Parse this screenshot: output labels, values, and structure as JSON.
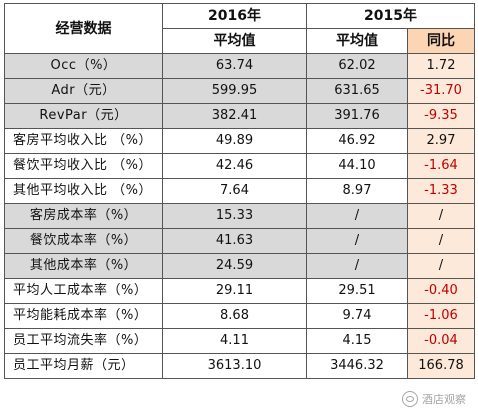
{
  "header": {
    "metric_label": "经营数据",
    "year_2016": "2016年",
    "year_2015": "2015年",
    "avg_label_2016": "平均值",
    "avg_label_2015": "平均值",
    "yoy_label": "同比"
  },
  "rows": [
    {
      "label": "Occ（%）",
      "v2016": "63.74",
      "v2015": "62.02",
      "yoy": "1.72",
      "yoy_negative": false,
      "gray": true,
      "centered": true
    },
    {
      "label": "Adr（元）",
      "v2016": "599.95",
      "v2015": "631.65",
      "yoy": "-31.70",
      "yoy_negative": true,
      "gray": true,
      "centered": true
    },
    {
      "label": "RevPar（元）",
      "v2016": "382.41",
      "v2015": "391.76",
      "yoy": "-9.35",
      "yoy_negative": true,
      "gray": true,
      "centered": true
    },
    {
      "label": "客房平均收入比 （%）",
      "v2016": "49.89",
      "v2015": "46.92",
      "yoy": "2.97",
      "yoy_negative": false,
      "gray": false,
      "centered": false
    },
    {
      "label": "餐饮平均收入比 （%）",
      "v2016": "42.46",
      "v2015": "44.10",
      "yoy": "-1.64",
      "yoy_negative": true,
      "gray": false,
      "centered": false
    },
    {
      "label": "其他平均收入比 （%）",
      "v2016": "7.64",
      "v2015": "8.97",
      "yoy": "-1.33",
      "yoy_negative": true,
      "gray": false,
      "centered": false
    },
    {
      "label": "客房成本率（%）",
      "v2016": "15.33",
      "v2015": "/",
      "yoy": "/",
      "yoy_negative": false,
      "gray": true,
      "centered": true
    },
    {
      "label": "餐饮成本率（%）",
      "v2016": "41.63",
      "v2015": "/",
      "yoy": "/",
      "yoy_negative": false,
      "gray": true,
      "centered": true
    },
    {
      "label": "其他成本率（%）",
      "v2016": "24.59",
      "v2015": "/",
      "yoy": "/",
      "yoy_negative": false,
      "gray": true,
      "centered": true
    },
    {
      "label": "平均人工成本率（%）",
      "v2016": "29.11",
      "v2015": "29.51",
      "yoy": "-0.40",
      "yoy_negative": true,
      "gray": false,
      "centered": false
    },
    {
      "label": "平均能耗成本率（%）",
      "v2016": "8.68",
      "v2015": "9.74",
      "yoy": "-1.06",
      "yoy_negative": true,
      "gray": false,
      "centered": false
    },
    {
      "label": "员工平均流失率（%）",
      "v2016": "4.11",
      "v2015": "4.15",
      "yoy": "-0.04",
      "yoy_negative": true,
      "gray": false,
      "centered": false
    },
    {
      "label": "员工平均月薪（元）",
      "v2016": "3613.10",
      "v2015": "3446.32",
      "yoy": "166.78",
      "yoy_negative": false,
      "gray": false,
      "centered": false
    }
  ],
  "watermark": {
    "text": "酒店观察",
    "icon": "wechat-icon"
  },
  "colors": {
    "gray_fill": "#d9d9d9",
    "yoy_fill": "#fde9d9",
    "yoy_header_fill": "#fcd5b4",
    "negative_text": "#c00000"
  }
}
